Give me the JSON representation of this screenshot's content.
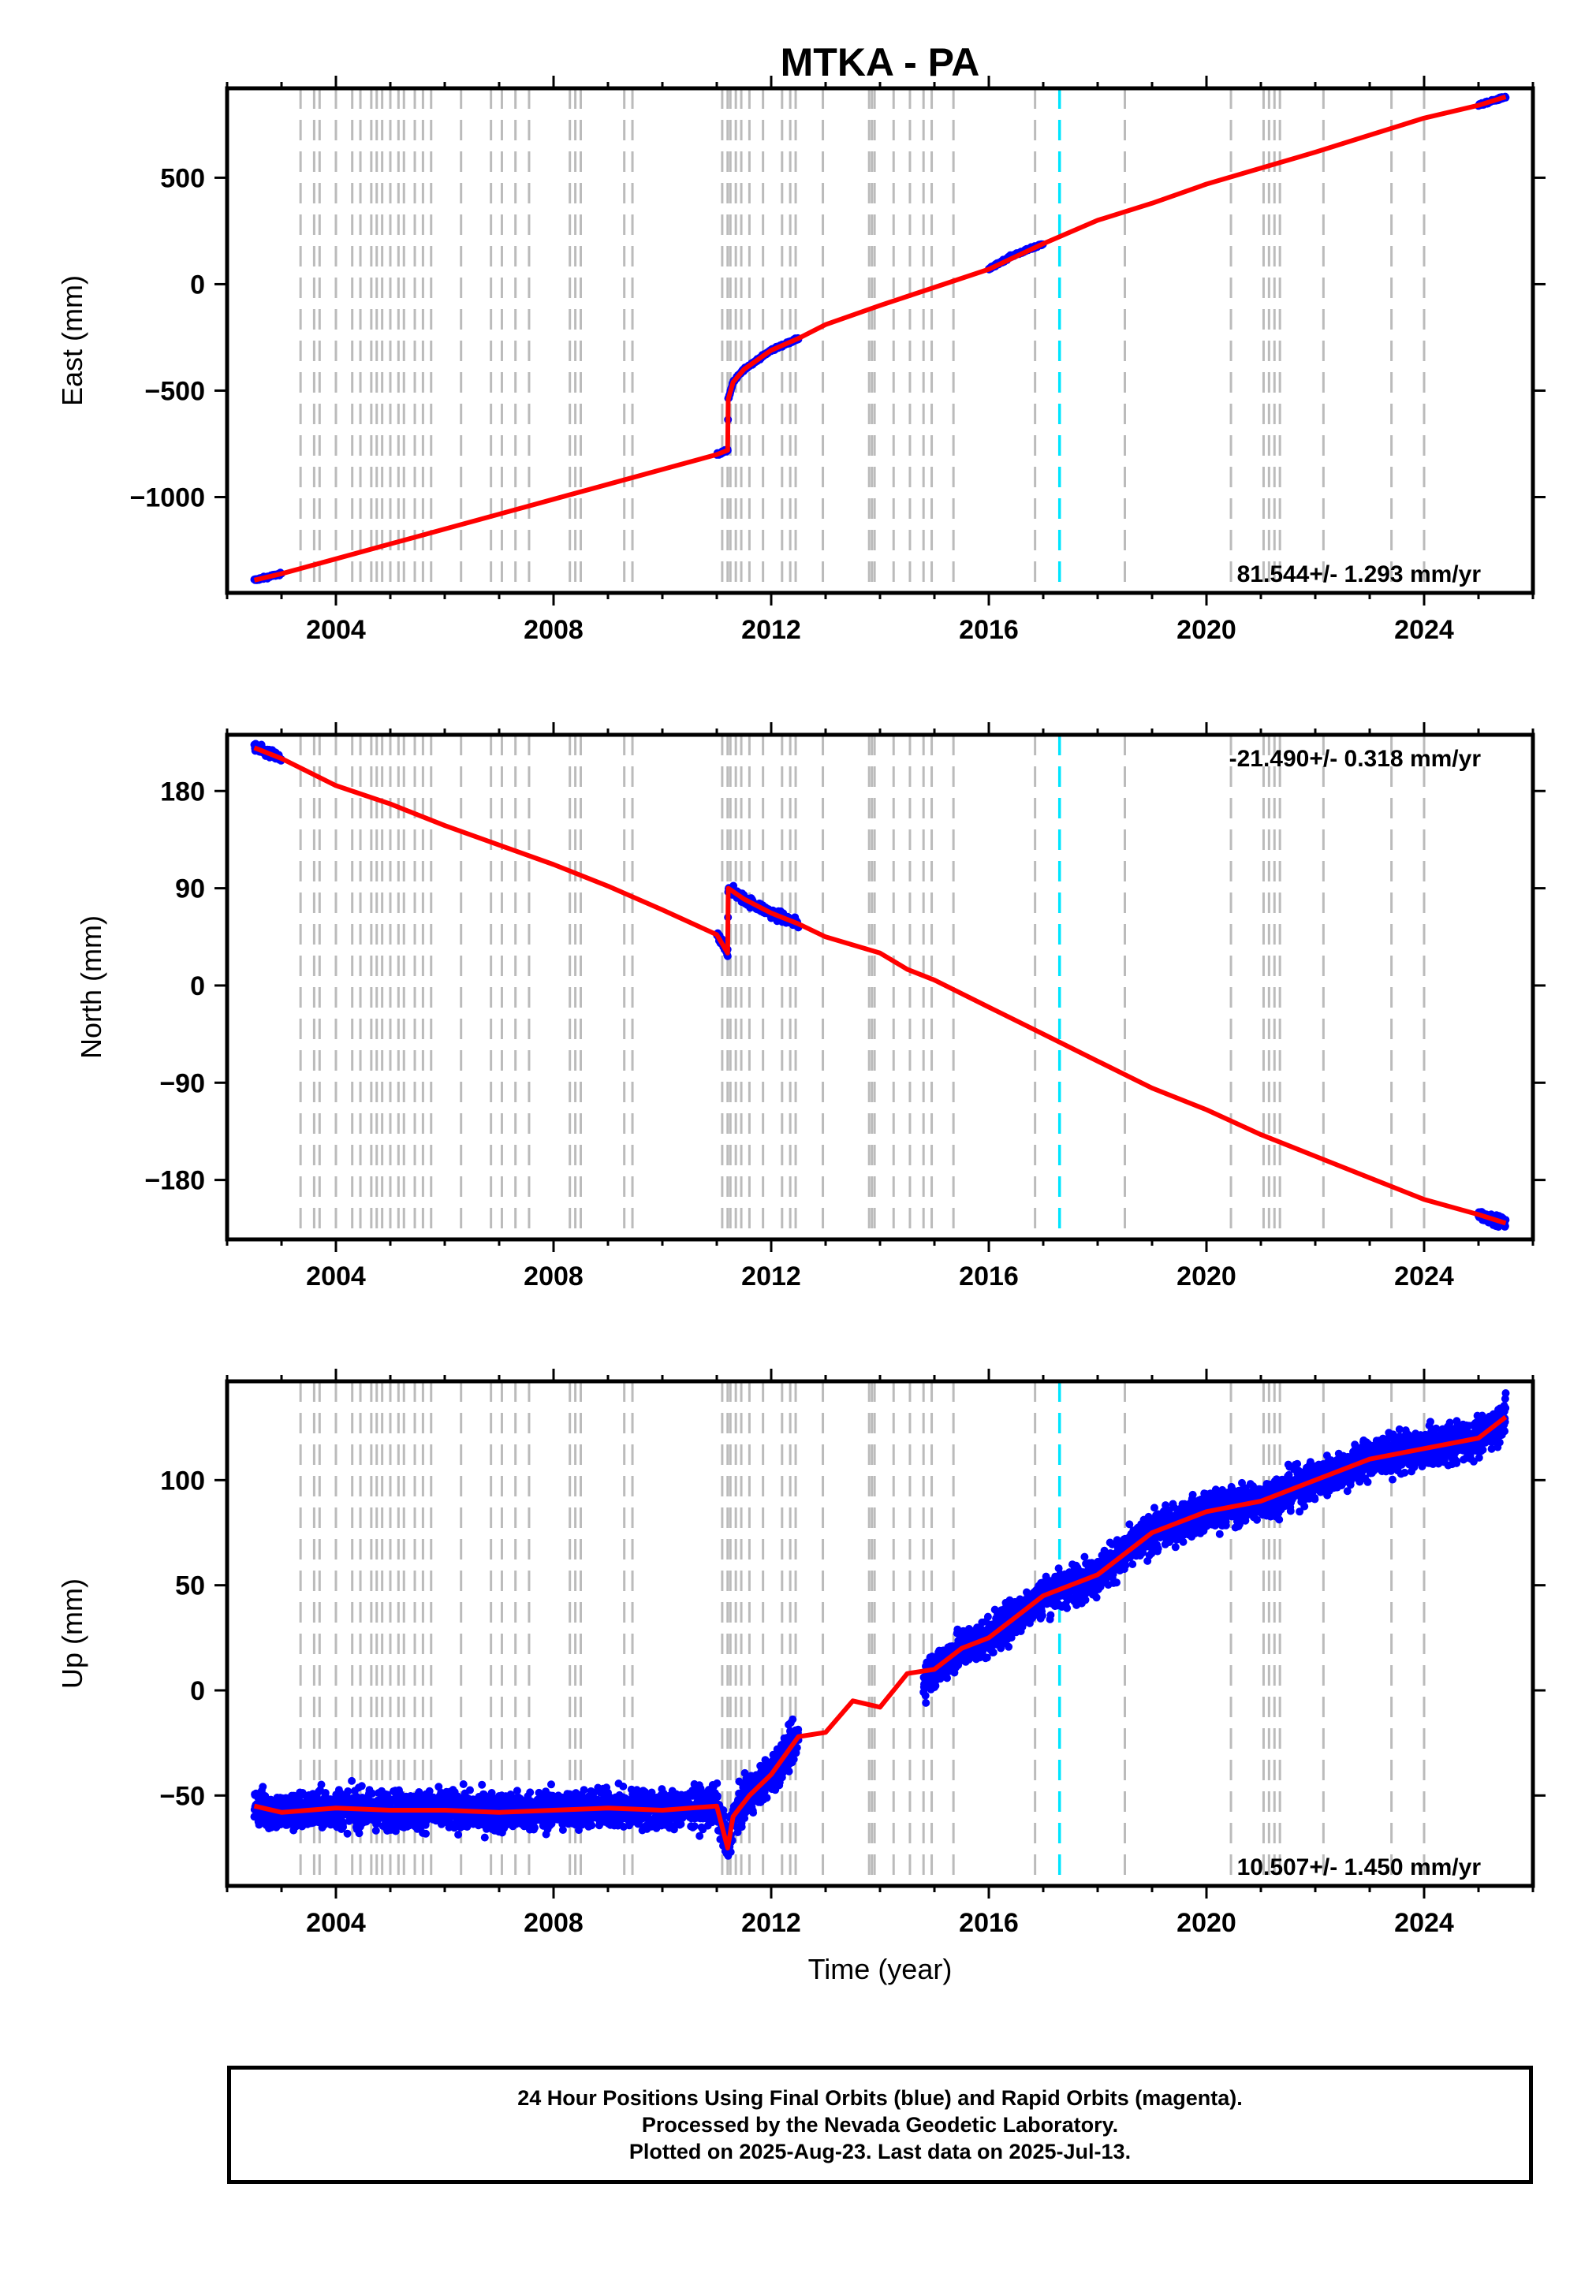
{
  "figure": {
    "title": "MTKA - PA",
    "xlabel": "Time (year)",
    "footer": [
      "24 Hour Positions Using Final Orbits (blue) and Rapid Orbits (magenta).",
      "Processed by the Nevada Geodetic Laboratory.",
      "Plotted on 2025-Aug-23. Last data on 2025-Jul-13."
    ]
  },
  "colors": {
    "data_points": "#0000ff",
    "model_line": "#ff0000",
    "event_lines": "#bbbbbb",
    "highlight_event": "#00e5ff",
    "axes": "#000000"
  },
  "events": {
    "gray_dashed": [
      2003.35,
      2003.6,
      2003.7,
      2004.0,
      2004.3,
      2004.45,
      2004.65,
      2004.75,
      2004.85,
      2005.0,
      2005.15,
      2005.25,
      2005.45,
      2005.6,
      2005.75,
      2006.3,
      2006.85,
      2007.05,
      2007.3,
      2007.55,
      2008.3,
      2008.4,
      2008.5,
      2009.3,
      2009.45,
      2011.1,
      2011.2,
      2011.25,
      2011.35,
      2011.45,
      2011.6,
      2011.85,
      2012.2,
      2012.35,
      2012.45,
      2012.95,
      2013.8,
      2013.85,
      2013.9,
      2014.25,
      2014.55,
      2014.8,
      2014.95,
      2015.35,
      2016.85,
      2018.5,
      2020.45,
      2021.05,
      2021.15,
      2021.25,
      2021.35,
      2022.15,
      2023.4,
      2024.0
    ],
    "cyan_dashed": [
      2017.3
    ]
  },
  "chart_data": [
    {
      "type": "scatter",
      "ylabel": "East (mm)",
      "xlim": [
        2002.0,
        2026.0
      ],
      "ylim": [
        -1450,
        920
      ],
      "x_ticks": [
        2004,
        2008,
        2012,
        2016,
        2020,
        2024
      ],
      "y_ticks": [
        -1000,
        -500,
        0,
        500
      ],
      "y_tick_labels": [
        "−1000",
        "−500",
        "0",
        "500"
      ],
      "rate_annotation": "81.544+/- 1.293 mm/yr",
      "annotation_position": "bottom-right",
      "series": [
        {
          "role": "daily positions",
          "x": [
            2002.5,
            2003.0,
            2004.0,
            2005.0,
            2006.0,
            2007.0,
            2008.0,
            2009.0,
            2010.0,
            2011.0,
            2011.2,
            2011.21,
            2011.3,
            2011.5,
            2012.0,
            2012.5,
            2015.0,
            2016.0,
            2016.4,
            2017.0,
            2018.0,
            2019.0,
            2020.0,
            2021.0,
            2022.0,
            2023.0,
            2024.0,
            2025.0,
            2025.5
          ],
          "y": [
            -1390,
            -1360,
            -1290,
            -1220,
            -1150,
            -1080,
            -1010,
            -940,
            -870,
            -800,
            -780,
            -540,
            -460,
            -400,
            -310,
            -255,
            -15,
            70,
            130,
            190,
            300,
            380,
            470,
            545,
            620,
            700,
            780,
            840,
            880
          ]
        },
        {
          "role": "model",
          "x": [
            2002.5,
            2003.0,
            2004.0,
            2005.0,
            2006.0,
            2007.0,
            2008.0,
            2009.0,
            2010.0,
            2011.0,
            2011.2,
            2011.21,
            2011.3,
            2011.5,
            2012.0,
            2012.5,
            2013.0,
            2014.0,
            2015.0,
            2016.0,
            2017.0,
            2018.0,
            2019.0,
            2020.0,
            2021.0,
            2022.0,
            2023.0,
            2024.0,
            2025.0,
            2025.5
          ],
          "y": [
            -1390,
            -1360,
            -1290,
            -1220,
            -1150,
            -1080,
            -1010,
            -940,
            -870,
            -800,
            -780,
            -540,
            -460,
            -400,
            -310,
            -255,
            -190,
            -100,
            -15,
            70,
            190,
            300,
            380,
            470,
            545,
            620,
            700,
            780,
            840,
            880
          ]
        }
      ]
    },
    {
      "type": "scatter",
      "ylabel": "North (mm)",
      "xlim": [
        2002.0,
        2026.0
      ],
      "ylim": [
        -235,
        232
      ],
      "x_ticks": [
        2004,
        2008,
        2012,
        2016,
        2020,
        2024
      ],
      "y_ticks": [
        -180,
        -90,
        0,
        90,
        180
      ],
      "y_tick_labels": [
        "−180",
        "−90",
        "0",
        "90",
        "180"
      ],
      "rate_annotation": "-21.490+/- 0.318 mm/yr",
      "annotation_position": "top-right",
      "series": [
        {
          "role": "daily positions",
          "x": [
            2002.5,
            2003.0,
            2004.0,
            2005.0,
            2006.0,
            2007.0,
            2008.0,
            2009.0,
            2010.0,
            2011.0,
            2011.2,
            2011.21,
            2011.5,
            2012.0,
            2012.5,
            2015.0,
            2016.0,
            2017.0,
            2018.0,
            2019.0,
            2020.0,
            2021.0,
            2022.0,
            2023.0,
            2024.0,
            2025.0,
            2025.5
          ],
          "y": [
            220,
            210,
            185,
            168,
            148,
            130,
            112,
            92,
            70,
            47,
            30,
            90,
            80,
            67,
            57,
            5,
            -20,
            -45,
            -70,
            -95,
            -115,
            -138,
            -158,
            -178,
            -198,
            -212,
            -220
          ]
        },
        {
          "role": "model",
          "x": [
            2002.5,
            2003.0,
            2004.0,
            2005.0,
            2006.0,
            2007.0,
            2008.0,
            2009.0,
            2010.0,
            2011.0,
            2011.2,
            2011.21,
            2011.5,
            2012.0,
            2012.5,
            2013.0,
            2014.0,
            2014.5,
            2015.0,
            2016.0,
            2017.0,
            2018.0,
            2019.0,
            2020.0,
            2021.0,
            2022.0,
            2023.0,
            2024.0,
            2025.0,
            2025.5
          ],
          "y": [
            220,
            210,
            185,
            168,
            148,
            130,
            112,
            92,
            70,
            47,
            30,
            90,
            80,
            67,
            57,
            45,
            30,
            15,
            5,
            -20,
            -45,
            -70,
            -95,
            -115,
            -138,
            -158,
            -178,
            -198,
            -212,
            -220
          ]
        }
      ]
    },
    {
      "type": "scatter",
      "ylabel": "Up (mm)",
      "xlim": [
        2002.0,
        2026.0
      ],
      "ylim": [
        -93,
        147
      ],
      "x_ticks": [
        2004,
        2008,
        2012,
        2016,
        2020,
        2024
      ],
      "y_ticks": [
        -50,
        0,
        50,
        100
      ],
      "y_tick_labels": [
        "−50",
        "0",
        "50",
        "100"
      ],
      "rate_annotation": "10.507+/- 1.450 mm/yr",
      "annotation_position": "bottom-right",
      "series": [
        {
          "role": "daily positions",
          "x": [
            2002.5,
            2003.0,
            2004.0,
            2005.0,
            2006.0,
            2007.0,
            2008.0,
            2009.0,
            2010.0,
            2011.0,
            2011.2,
            2011.3,
            2011.6,
            2012.0,
            2012.5,
            2014.8,
            2015.0,
            2015.5,
            2016.0,
            2016.5,
            2017.0,
            2018.0,
            2019.0,
            2020.0,
            2021.0,
            2022.0,
            2023.0,
            2024.0,
            2025.0,
            2025.5
          ],
          "y": [
            -55,
            -58,
            -56,
            -57,
            -57,
            -58,
            -57,
            -56,
            -57,
            -55,
            -75,
            -60,
            -50,
            -40,
            -22,
            5,
            10,
            20,
            25,
            35,
            45,
            55,
            75,
            85,
            90,
            100,
            110,
            115,
            120,
            130
          ]
        },
        {
          "role": "model",
          "x": [
            2002.5,
            2003.0,
            2004.0,
            2005.0,
            2006.0,
            2007.0,
            2008.0,
            2009.0,
            2010.0,
            2011.0,
            2011.2,
            2011.3,
            2011.6,
            2012.0,
            2012.5,
            2013.0,
            2013.5,
            2014.0,
            2014.5,
            2015.0,
            2015.5,
            2016.0,
            2016.5,
            2017.0,
            2018.0,
            2019.0,
            2020.0,
            2021.0,
            2022.0,
            2023.0,
            2024.0,
            2025.0,
            2025.5
          ],
          "y": [
            -55,
            -58,
            -56,
            -57,
            -57,
            -58,
            -57,
            -56,
            -57,
            -55,
            -75,
            -60,
            -50,
            -40,
            -22,
            -20,
            -5,
            -8,
            8,
            10,
            20,
            25,
            35,
            45,
            55,
            75,
            85,
            90,
            100,
            110,
            115,
            120,
            130
          ]
        }
      ]
    }
  ]
}
